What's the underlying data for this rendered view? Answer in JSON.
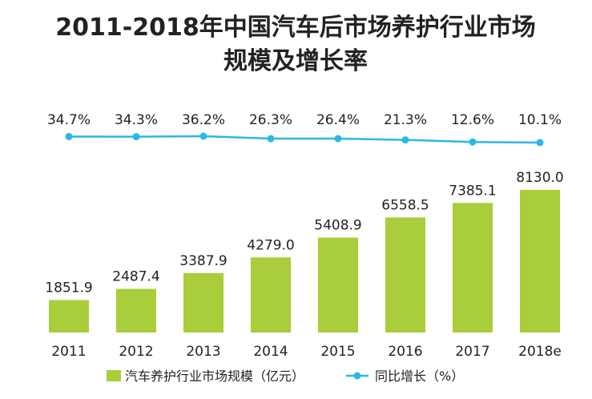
{
  "chart_data": {
    "type": "bar",
    "title": "2011-2018年中国汽车后市场养护行业市场",
    "subtitle": "规模及增长率",
    "categories": [
      "2011",
      "2012",
      "2013",
      "2014",
      "2015",
      "2016",
      "2017",
      "2018e"
    ],
    "series": [
      {
        "name": "汽车养护行业市场规模（亿元）",
        "type": "bar",
        "values": [
          1851.9,
          2487.4,
          3387.9,
          4279.0,
          5408.9,
          6558.5,
          7385.1,
          8130.0
        ],
        "labels": [
          "1851.9",
          "2487.4",
          "3387.9",
          "4279.0",
          "5408.9",
          "6558.5",
          "7385.1",
          "8130.0"
        ],
        "color": "#a9cd3b"
      },
      {
        "name": "同比增长（%）",
        "type": "line",
        "values": [
          34.7,
          34.3,
          36.2,
          26.3,
          26.4,
          21.3,
          12.6,
          10.1
        ],
        "labels": [
          "34.7%",
          "34.3%",
          "36.2%",
          "26.3%",
          "26.4%",
          "21.3%",
          "12.6%",
          "10.1%"
        ],
        "color": "#2ab8e6"
      }
    ],
    "ylim_bar": [
      0,
      9200
    ],
    "legend_position": "bottom",
    "grid": false
  }
}
